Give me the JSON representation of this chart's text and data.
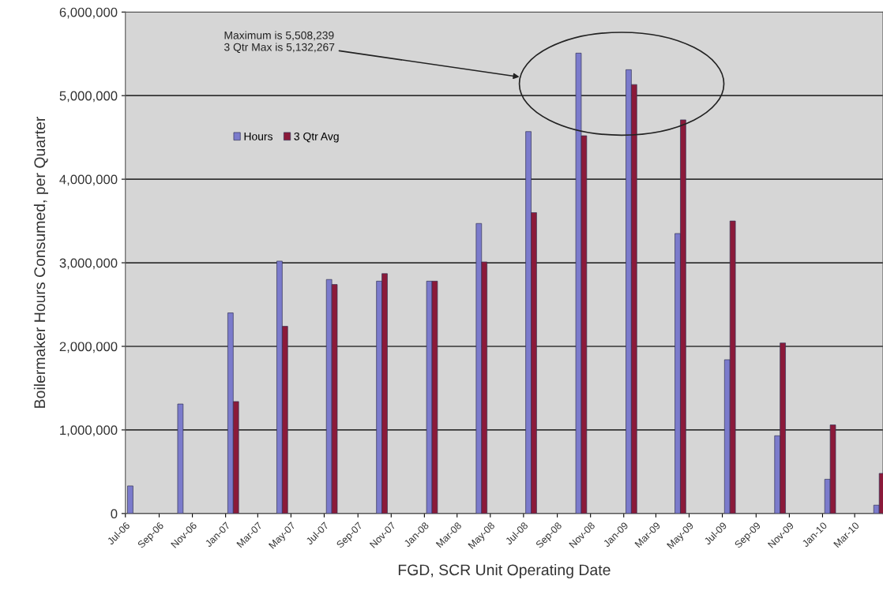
{
  "chart_data": {
    "type": "bar",
    "xlabel": "FGD, SCR Unit Operating Date",
    "ylabel": "Boilermaker Hours Consumed, per Quarter",
    "x": [
      "2006-07-15",
      "2006-10-15",
      "2007-01-15",
      "2007-04-15",
      "2007-07-15",
      "2007-10-15",
      "2008-01-15",
      "2008-04-15",
      "2008-07-15",
      "2008-10-15",
      "2009-01-15",
      "2009-04-15",
      "2009-07-15",
      "2009-10-15",
      "2010-01-15",
      "2010-04-15"
    ],
    "series": [
      {
        "name": "Hours",
        "color": "#7b7bcc",
        "values": [
          330000,
          1310000,
          2400000,
          3020000,
          2800000,
          2780000,
          2780000,
          3470000,
          4570000,
          5508239,
          5310000,
          3350000,
          1840000,
          930000,
          410000,
          100000
        ]
      },
      {
        "name": "3 Qtr Avg",
        "color": "#8b1a3a",
        "values": [
          null,
          null,
          1340000,
          2240000,
          2740000,
          2870000,
          2780000,
          3010000,
          3600000,
          4520000,
          5132267,
          4710000,
          3500000,
          2040000,
          1060000,
          480000
        ]
      }
    ],
    "xlim": [
      "2006-07-01",
      "2010-04-22"
    ],
    "xticks": [
      {
        "value": "2006-07-01",
        "label": "Jul-06"
      },
      {
        "value": "2006-09-01",
        "label": "Sep-06"
      },
      {
        "value": "2006-11-01",
        "label": "Nov-06"
      },
      {
        "value": "2007-01-01",
        "label": "Jan-07"
      },
      {
        "value": "2007-03-01",
        "label": "Mar-07"
      },
      {
        "value": "2007-05-01",
        "label": "May-07"
      },
      {
        "value": "2007-07-01",
        "label": "Jul-07"
      },
      {
        "value": "2007-09-01",
        "label": "Sep-07"
      },
      {
        "value": "2007-11-01",
        "label": "Nov-07"
      },
      {
        "value": "2008-01-01",
        "label": "Jan-08"
      },
      {
        "value": "2008-03-01",
        "label": "Mar-08"
      },
      {
        "value": "2008-05-01",
        "label": "May-08"
      },
      {
        "value": "2008-07-01",
        "label": "Jul-08"
      },
      {
        "value": "2008-09-01",
        "label": "Sep-08"
      },
      {
        "value": "2008-11-01",
        "label": "Nov-08"
      },
      {
        "value": "2009-01-01",
        "label": "Jan-09"
      },
      {
        "value": "2009-03-01",
        "label": "Mar-09"
      },
      {
        "value": "2009-05-01",
        "label": "May-09"
      },
      {
        "value": "2009-07-01",
        "label": "Jul-09"
      },
      {
        "value": "2009-09-01",
        "label": "Sep-09"
      },
      {
        "value": "2009-11-01",
        "label": "Nov-09"
      },
      {
        "value": "2010-01-01",
        "label": "Jan-10"
      },
      {
        "value": "2010-03-01",
        "label": "Mar-10"
      }
    ],
    "ylim": [
      0,
      6000000
    ],
    "yticks": [
      0,
      {
        "value": 1000000,
        "label": "1,000,000"
      },
      {
        "value": 2000000,
        "label": "2,000,000"
      },
      {
        "value": 3000000,
        "label": "3,000,000"
      },
      {
        "value": 4000000,
        "label": "4,000,000"
      },
      {
        "value": 5000000,
        "label": "5,000,000"
      },
      {
        "value": 6000000,
        "label": "6,000,000"
      }
    ],
    "grid": "y",
    "legend": "top left",
    "annotations": [
      "Maximum is 5,508,239\n3 Qtr Max is 5,132,267"
    ]
  }
}
